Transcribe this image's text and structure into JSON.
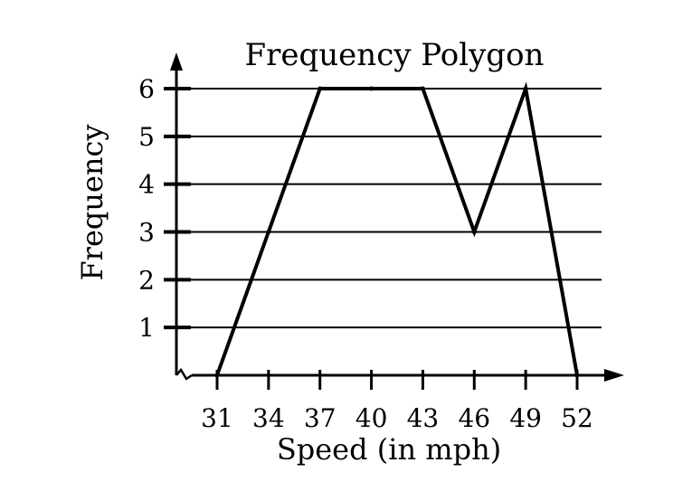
{
  "chart_data": {
    "type": "line",
    "title": "Frequency Polygon",
    "xlabel": "Speed (in mph)",
    "ylabel": "Frequency",
    "x": [
      31,
      34,
      37,
      40,
      43,
      46,
      49,
      52
    ],
    "xticks": [
      "31",
      "34",
      "37",
      "40",
      "43",
      "46",
      "49",
      "52"
    ],
    "yticks": [
      "1",
      "2",
      "3",
      "4",
      "5",
      "6"
    ],
    "series": [
      {
        "x": [
          31,
          34,
          37,
          40,
          43,
          46,
          49,
          52
        ],
        "values": [
          0,
          3,
          6,
          6,
          6,
          3,
          6,
          0
        ]
      }
    ],
    "xlim": [
      31,
      52
    ],
    "ylim": [
      0,
      6
    ],
    "grid": true,
    "color": "#000000"
  }
}
